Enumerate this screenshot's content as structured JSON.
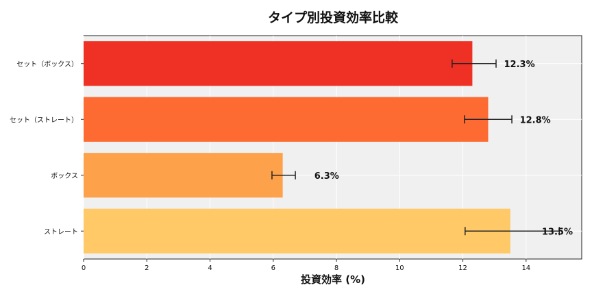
{
  "chart_data": {
    "type": "bar",
    "orientation": "horizontal",
    "title": "タイプ別投資効率比較",
    "xlabel": "投資効率 (%)",
    "ylabel": "",
    "xlim": [
      0,
      15.76
    ],
    "xticks": [
      0,
      2,
      4,
      6,
      8,
      10,
      12,
      14
    ],
    "grid": true,
    "categories": [
      "セット（ボックス）",
      "セット（ストレート）",
      "ボックス",
      "ストレート"
    ],
    "values": [
      12.3,
      12.8,
      6.3,
      13.5
    ],
    "error_low": [
      11.66,
      12.05,
      5.96,
      12.07
    ],
    "error_high": [
      13.05,
      13.55,
      6.7,
      15.05
    ],
    "data_labels": [
      "12.3%",
      "12.8%",
      "6.3%",
      "13.5%"
    ],
    "colors": [
      "#ee3124",
      "#fd6b33",
      "#fda14a",
      "#fec966"
    ],
    "background": "#f0f0f0"
  }
}
